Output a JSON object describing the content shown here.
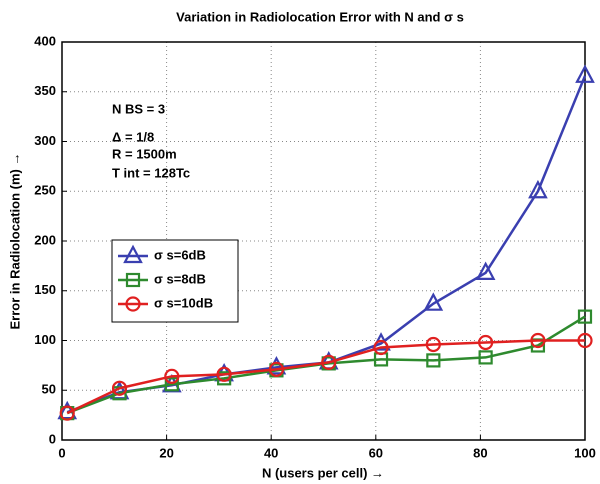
{
  "chart_data": {
    "type": "line",
    "title": "Variation in Radiolocation Error with N and σ s",
    "xlabel": "N (users per cell) →",
    "ylabel": "Error in Radiolocation (m) →",
    "annotations": [
      "N BS = 3",
      "Δ = 1/8",
      "R = 1500m",
      "T int = 128Tc"
    ],
    "x": [
      1,
      11,
      21,
      31,
      41,
      51,
      61,
      71,
      81,
      91,
      100
    ],
    "series": [
      {
        "name": "σ s=6dB",
        "color": "#3a3fb0",
        "marker": "triangle",
        "values": [
          28,
          48,
          55,
          66,
          73,
          78,
          97,
          137,
          168,
          250,
          366
        ]
      },
      {
        "name": "σ s=8dB",
        "color": "#2e8a2e",
        "marker": "square",
        "values": [
          27,
          47,
          56,
          62,
          70,
          77,
          81,
          80,
          83,
          95,
          124
        ]
      },
      {
        "name": "σ s=10dB",
        "color": "#e02020",
        "marker": "circle",
        "values": [
          27,
          52,
          64,
          66,
          71,
          78,
          93,
          96,
          98,
          100,
          100
        ]
      }
    ],
    "xlim": [
      0,
      100
    ],
    "xticks": [
      0,
      20,
      40,
      60,
      80,
      100
    ],
    "ylim": [
      0,
      400
    ],
    "yticks": [
      0,
      50,
      100,
      150,
      200,
      250,
      300,
      350,
      400
    ],
    "grid": true
  }
}
